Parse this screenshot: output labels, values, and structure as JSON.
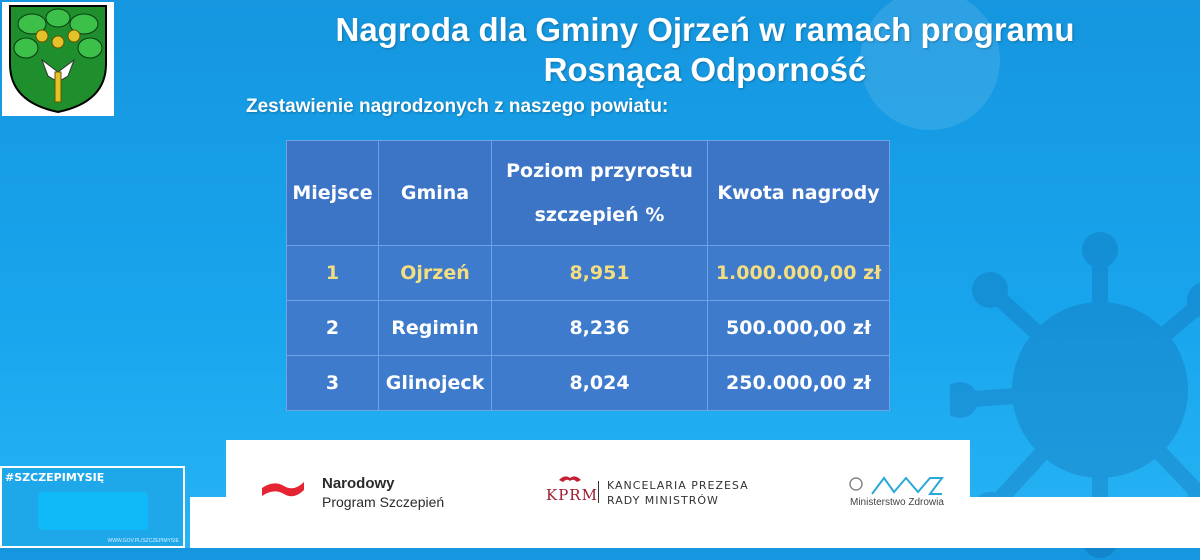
{
  "header": {
    "title_line1": "Nagroda dla Gminy Ojrzeń w ramach programu",
    "title_line2": "Rosnąca Odporność",
    "subtitle": "Zestawienie nagrodzonych z naszego powiatu:"
  },
  "table": {
    "columns": {
      "place": "Miejsce",
      "commune": "Gmina",
      "growth_line1": "Poziom przyrostu",
      "growth_line2": "szczepień %",
      "amount": "Kwota nagrody"
    },
    "rows": [
      {
        "place": "1",
        "commune": "Ojrzeń",
        "growth": "8,951",
        "amount": "1.000.000,00 zł"
      },
      {
        "place": "2",
        "commune": "Regimin",
        "growth": "8,236",
        "amount": "500.000,00 zł"
      },
      {
        "place": "3",
        "commune": "Glinojeck",
        "growth": "8,024",
        "amount": "250.000,00 zł"
      }
    ],
    "highlight_color": "#f4de7f"
  },
  "footer": {
    "nps_line1": "Narodowy",
    "nps_line2": "Program Szczepień",
    "kprm_abbr": "KPRM",
    "kprm_line1": "KANCELARIA PREZESA",
    "kprm_line2": "RADY MINISTRÓW",
    "mz_label": "Ministerstwo Zdrowia"
  },
  "badge": {
    "tag": "#SZCZEPIMYSIĘ",
    "url": "WWW.GOV.PL/SZCZEPIMYSIE"
  },
  "icons": {
    "crest": "oak-crest-icon",
    "virus": "virus-icon",
    "nps": "flag-icon",
    "kprm": "eagle-icon",
    "mz": "mz-logo-icon"
  }
}
